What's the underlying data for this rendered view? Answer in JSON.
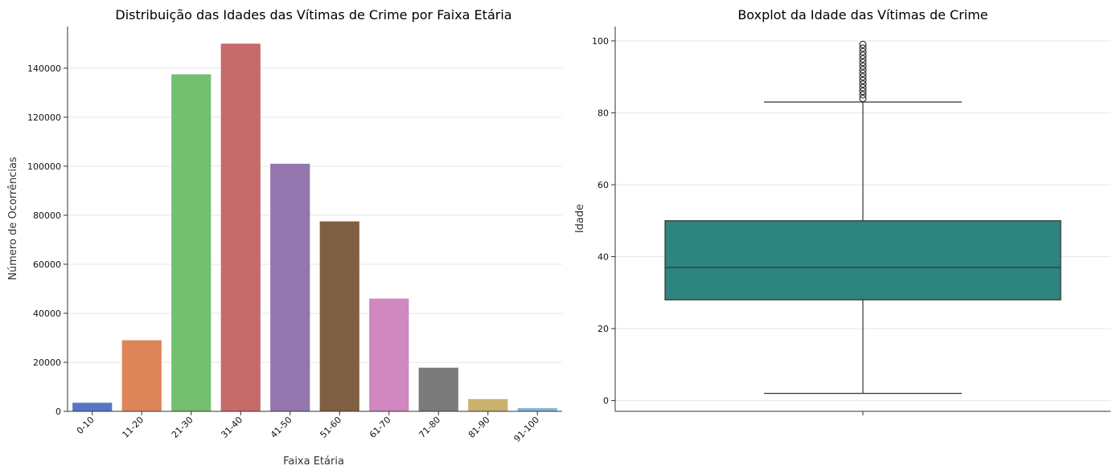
{
  "chart_data": [
    {
      "type": "bar",
      "title": "Distribuição das Idades das Vítimas de Crime por Faixa Etária",
      "xlabel": "Faixa Etária",
      "ylabel": "Número de Ocorrências",
      "categories": [
        "0-10",
        "11-20",
        "21-30",
        "31-40",
        "41-50",
        "51-60",
        "61-70",
        "71-80",
        "81-90",
        "91-100"
      ],
      "values": [
        3500,
        29000,
        137500,
        150000,
        101000,
        77500,
        46000,
        17800,
        5000,
        1300
      ],
      "colors": [
        "#5676c4",
        "#dd8559",
        "#74bf6f",
        "#c66b6a",
        "#9276ad",
        "#7f5f42",
        "#d187bf",
        "#7a7a7a",
        "#c9b16e",
        "#84b6d7"
      ],
      "ylim": [
        0,
        157000
      ],
      "yticks": [
        0,
        20000,
        40000,
        60000,
        80000,
        100000,
        120000,
        140000
      ],
      "grid": true
    },
    {
      "type": "box",
      "title": "Boxplot da Idade das Vítimas de Crime",
      "xlabel": "",
      "ylabel": "Idade",
      "ylim": [
        -3,
        104
      ],
      "yticks": [
        0,
        20,
        40,
        60,
        80,
        100
      ],
      "box_color": "#2e847f",
      "whisker_low": 2,
      "q1": 28,
      "median": 37,
      "q3": 50,
      "whisker_high": 83,
      "outliers": [
        84,
        85,
        86,
        87,
        88,
        89,
        90,
        91,
        92,
        93,
        94,
        95,
        96,
        97,
        98,
        99
      ],
      "grid": true
    }
  ]
}
